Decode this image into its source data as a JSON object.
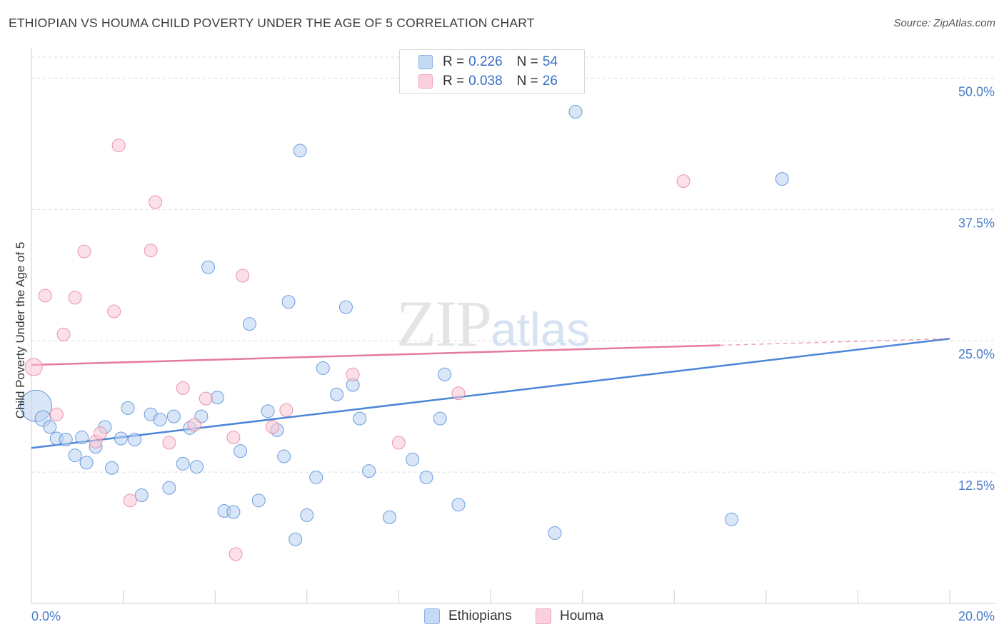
{
  "header": {
    "title": "ETHIOPIAN VS HOUMA CHILD POVERTY UNDER THE AGE OF 5 CORRELATION CHART",
    "source": "Source: ZipAtlas.com"
  },
  "watermark": {
    "zip": "ZIP",
    "atlas": "atlas"
  },
  "legend": {
    "rows": [
      {
        "r_label": "R =",
        "r_value": "0.226",
        "n_label": "N =",
        "n_value": "54",
        "color": "#a9c6ef"
      },
      {
        "r_label": "R =",
        "r_value": "0.038",
        "n_label": "N =",
        "n_value": "26",
        "color": "#f6b8cb"
      }
    ]
  },
  "bottom_legend": {
    "items": [
      {
        "label": "Ethiopians",
        "color": "#a9c6ef"
      },
      {
        "label": "Houma",
        "color": "#f6b8cb"
      }
    ]
  },
  "chart_data": {
    "type": "scatter",
    "title": "ETHIOPIAN VS HOUMA CHILD POVERTY UNDER THE AGE OF 5 CORRELATION CHART",
    "xlabel": "",
    "ylabel": "Child Poverty Under the Age of 5",
    "xlim": [
      0,
      20
    ],
    "ylim": [
      0,
      52
    ],
    "x_tick_labels": [
      "0.0%",
      "20.0%"
    ],
    "y_ticks": [
      12.5,
      25.0,
      37.5,
      50.0
    ],
    "y_tick_labels": [
      "12.5%",
      "25.0%",
      "37.5%",
      "50.0%"
    ],
    "grid": "horizontal dashed",
    "legend_position": "top-center",
    "series": [
      {
        "name": "Ethiopians",
        "color": "#4a86d8",
        "fill": "#b9d1f1",
        "points": [
          [
            0.1,
            18.8
          ],
          [
            0.25,
            17.6
          ],
          [
            0.4,
            16.8
          ],
          [
            0.55,
            15.7
          ],
          [
            0.75,
            15.6
          ],
          [
            0.95,
            14.1
          ],
          [
            1.1,
            15.8
          ],
          [
            1.2,
            13.4
          ],
          [
            1.4,
            14.9
          ],
          [
            1.6,
            16.8
          ],
          [
            1.75,
            12.9
          ],
          [
            1.95,
            15.7
          ],
          [
            2.1,
            18.6
          ],
          [
            2.25,
            15.6
          ],
          [
            2.4,
            10.3
          ],
          [
            2.6,
            18.0
          ],
          [
            2.8,
            17.5
          ],
          [
            3.0,
            11.0
          ],
          [
            3.1,
            17.8
          ],
          [
            3.3,
            13.3
          ],
          [
            3.45,
            16.7
          ],
          [
            3.6,
            13.0
          ],
          [
            3.7,
            17.8
          ],
          [
            3.85,
            32.0
          ],
          [
            4.05,
            19.6
          ],
          [
            4.2,
            8.8
          ],
          [
            4.4,
            8.7
          ],
          [
            4.55,
            14.5
          ],
          [
            4.75,
            26.6
          ],
          [
            4.95,
            9.8
          ],
          [
            5.15,
            18.3
          ],
          [
            5.35,
            16.5
          ],
          [
            5.5,
            14.0
          ],
          [
            5.6,
            28.7
          ],
          [
            5.75,
            6.1
          ],
          [
            5.85,
            43.1
          ],
          [
            6.0,
            8.4
          ],
          [
            6.2,
            12.0
          ],
          [
            6.35,
            22.4
          ],
          [
            6.65,
            19.9
          ],
          [
            6.85,
            28.2
          ],
          [
            7.0,
            20.8
          ],
          [
            7.15,
            17.6
          ],
          [
            7.35,
            12.6
          ],
          [
            7.8,
            8.2
          ],
          [
            8.3,
            13.7
          ],
          [
            8.6,
            12.0
          ],
          [
            8.9,
            17.6
          ],
          [
            9.0,
            21.8
          ],
          [
            9.3,
            9.4
          ],
          [
            11.4,
            6.7
          ],
          [
            11.85,
            46.8
          ],
          [
            15.25,
            8.0
          ],
          [
            16.35,
            40.4
          ]
        ],
        "sizes": [
          22,
          11,
          9,
          9,
          9,
          9,
          9,
          9,
          9,
          9,
          9,
          9,
          9,
          9,
          9,
          9,
          9,
          9,
          9,
          9,
          9,
          9,
          9,
          9,
          9,
          9,
          9,
          9,
          9,
          9,
          9,
          9,
          9,
          9,
          9,
          9,
          9,
          9,
          9,
          9,
          9,
          9,
          9,
          9,
          9,
          9,
          9,
          9,
          9,
          9,
          9,
          9,
          9,
          9
        ],
        "trend": {
          "x": [
            0,
            20
          ],
          "y": [
            14.8,
            25.2
          ],
          "dashed_from": 20
        }
      },
      {
        "name": "Houma",
        "color": "#e67a9e",
        "fill": "#f8c6d5",
        "points": [
          [
            0.05,
            22.5
          ],
          [
            0.55,
            18.0
          ],
          [
            0.3,
            29.3
          ],
          [
            0.7,
            25.6
          ],
          [
            0.95,
            29.1
          ],
          [
            1.15,
            33.5
          ],
          [
            1.4,
            15.4
          ],
          [
            1.5,
            16.2
          ],
          [
            1.8,
            27.8
          ],
          [
            1.9,
            43.6
          ],
          [
            2.15,
            9.8
          ],
          [
            2.6,
            33.6
          ],
          [
            2.7,
            38.2
          ],
          [
            3.0,
            15.3
          ],
          [
            3.3,
            20.5
          ],
          [
            3.55,
            17.0
          ],
          [
            3.8,
            19.5
          ],
          [
            4.4,
            15.8
          ],
          [
            4.45,
            4.7
          ],
          [
            4.6,
            31.2
          ],
          [
            5.25,
            16.8
          ],
          [
            5.55,
            18.4
          ],
          [
            7.0,
            21.8
          ],
          [
            8.0,
            15.3
          ],
          [
            9.3,
            20.0
          ],
          [
            14.2,
            40.2
          ]
        ],
        "sizes": [
          12,
          9,
          9,
          9,
          9,
          9,
          9,
          9,
          9,
          9,
          9,
          9,
          9,
          9,
          9,
          9,
          9,
          9,
          9,
          9,
          9,
          9,
          9,
          9,
          9,
          9
        ],
        "trend": {
          "x": [
            0,
            20
          ],
          "y": [
            22.7,
            25.2
          ],
          "dashed_from": 15
        }
      }
    ]
  }
}
